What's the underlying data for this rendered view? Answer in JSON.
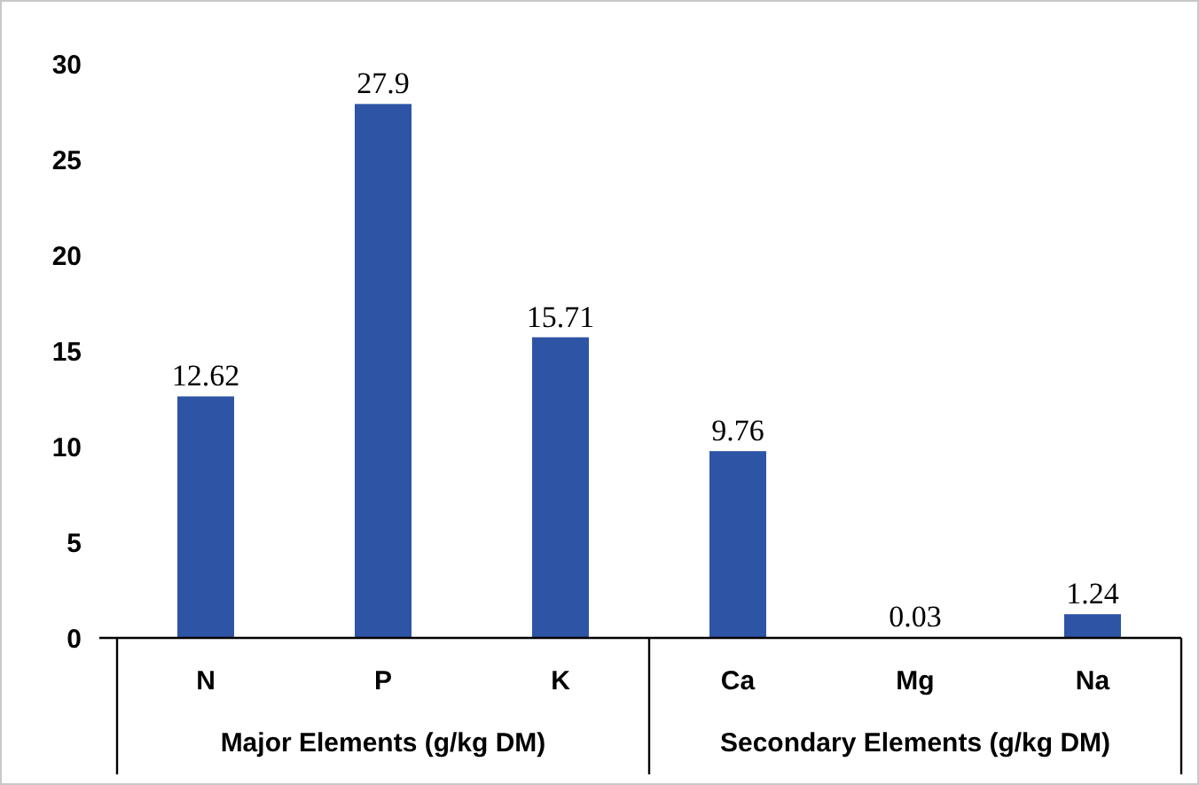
{
  "chart_data": {
    "type": "bar",
    "categories": [
      "N",
      "P",
      "K",
      "Ca",
      "Mg",
      "Na"
    ],
    "values": [
      12.62,
      27.9,
      15.71,
      9.76,
      0.03,
      1.24
    ],
    "color": "#2e54a6",
    "ylim": [
      0,
      30
    ],
    "yticks": [
      0,
      5,
      10,
      15,
      20,
      25,
      30
    ],
    "grid": false,
    "data_labels": true,
    "annotations": [
      "Major Elements (g/kg DM)",
      "Secondary Elements (g/kg DM)"
    ]
  }
}
